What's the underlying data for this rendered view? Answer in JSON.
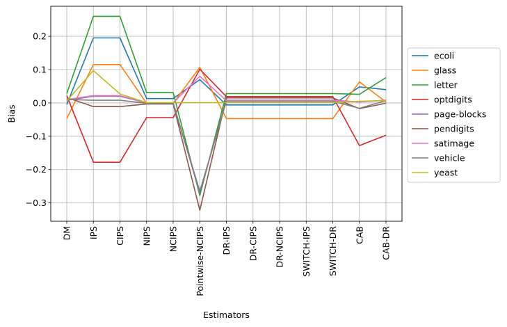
{
  "chart_data": {
    "type": "line",
    "xlabel": "Estimators",
    "ylabel": "Bias",
    "categories": [
      "DM",
      "IPS",
      "CIPS",
      "NIPS",
      "NCIPS",
      "Pointwise-NCIPS",
      "DR-IPS",
      "DR-CIPS",
      "DR-NCIPS",
      "SWITCH-IPS",
      "SWITCH-DR",
      "CAB",
      "CAB-DR"
    ],
    "ylim": [
      -0.355,
      0.29
    ],
    "yticks": [
      -0.3,
      -0.2,
      -0.1,
      0.0,
      0.1,
      0.2
    ],
    "ytick_labels": [
      "−0.3",
      "−0.2",
      "−0.1",
      "0.0",
      "0.1",
      "0.2"
    ],
    "grid": true,
    "legend_position": "center-right-outside",
    "series": [
      {
        "name": "ecoli",
        "color": "#1f77b4",
        "values": [
          -0.005,
          0.195,
          0.195,
          0.013,
          0.013,
          0.07,
          -0.006,
          -0.006,
          -0.006,
          -0.006,
          -0.006,
          0.048,
          0.04
        ]
      },
      {
        "name": "glass",
        "color": "#ff7f0e",
        "values": [
          -0.047,
          0.115,
          0.115,
          -0.001,
          -0.001,
          0.107,
          -0.047,
          -0.047,
          -0.047,
          -0.047,
          -0.047,
          0.063,
          0.003
        ]
      },
      {
        "name": "letter",
        "color": "#2ca02c",
        "values": [
          0.028,
          0.26,
          0.26,
          0.031,
          0.031,
          -0.278,
          0.028,
          0.028,
          0.028,
          0.028,
          0.028,
          0.026,
          0.076
        ]
      },
      {
        "name": "optdigits",
        "color": "#d62728",
        "values": [
          0.022,
          -0.178,
          -0.178,
          -0.044,
          -0.044,
          0.101,
          0.019,
          0.019,
          0.019,
          0.019,
          0.019,
          -0.128,
          -0.097
        ]
      },
      {
        "name": "page-blocks",
        "color": "#9467bd",
        "values": [
          0.008,
          0.02,
          0.02,
          0.0,
          0.0,
          -0.27,
          0.008,
          0.008,
          0.008,
          0.008,
          0.008,
          0.003,
          0.008
        ]
      },
      {
        "name": "pendigits",
        "color": "#8c564b",
        "values": [
          0.016,
          -0.011,
          -0.011,
          -0.003,
          -0.003,
          -0.322,
          0.015,
          0.015,
          0.015,
          0.015,
          0.015,
          -0.017,
          -0.001
        ]
      },
      {
        "name": "satimage",
        "color": "#e377c2",
        "values": [
          0.01,
          0.022,
          0.022,
          0.0,
          0.0,
          0.08,
          0.007,
          0.007,
          0.007,
          0.007,
          0.007,
          0.003,
          0.008
        ]
      },
      {
        "name": "vehicle",
        "color": "#7f7f7f",
        "values": [
          0.01,
          0.008,
          0.008,
          -0.001,
          -0.001,
          -0.265,
          0.005,
          0.005,
          0.005,
          0.005,
          0.005,
          -0.016,
          0.007
        ]
      },
      {
        "name": "yeast",
        "color": "#bcbd22",
        "values": [
          0.006,
          0.097,
          0.027,
          0.001,
          0.001,
          0.001,
          0.001,
          0.001,
          0.001,
          0.001,
          0.001,
          0.005,
          0.007
        ]
      }
    ]
  }
}
